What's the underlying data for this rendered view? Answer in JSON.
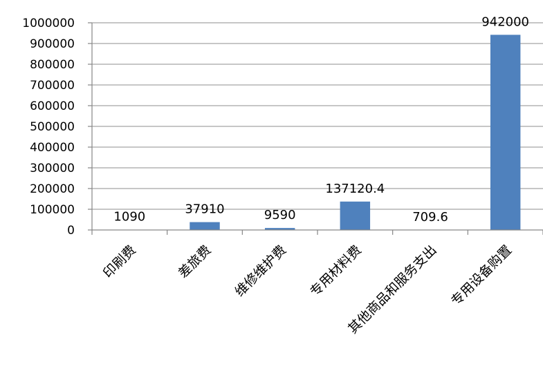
{
  "chart_data": {
    "type": "bar",
    "title": "",
    "xlabel": "",
    "ylabel": "",
    "categories": [
      "印刷费",
      "差旅费",
      "维修维护费",
      "专用材料费",
      "其他商品和服务支出",
      "专用设备购置"
    ],
    "values": [
      1090,
      37910,
      9590,
      137120.4,
      709.6,
      942000
    ],
    "data_labels": [
      "1090",
      "37910",
      "9590",
      "137120.4",
      "709.6",
      "942000"
    ],
    "ylim": [
      0,
      1000000
    ],
    "yticks": [
      0,
      100000,
      200000,
      300000,
      400000,
      500000,
      600000,
      700000,
      800000,
      900000,
      1000000
    ],
    "ytick_labels": [
      "0",
      "100000",
      "200000",
      "300000",
      "400000",
      "500000",
      "600000",
      "700000",
      "800000",
      "900000",
      "1000000"
    ],
    "grid": true,
    "legend": "none",
    "bar_color": "#4f81bd"
  }
}
